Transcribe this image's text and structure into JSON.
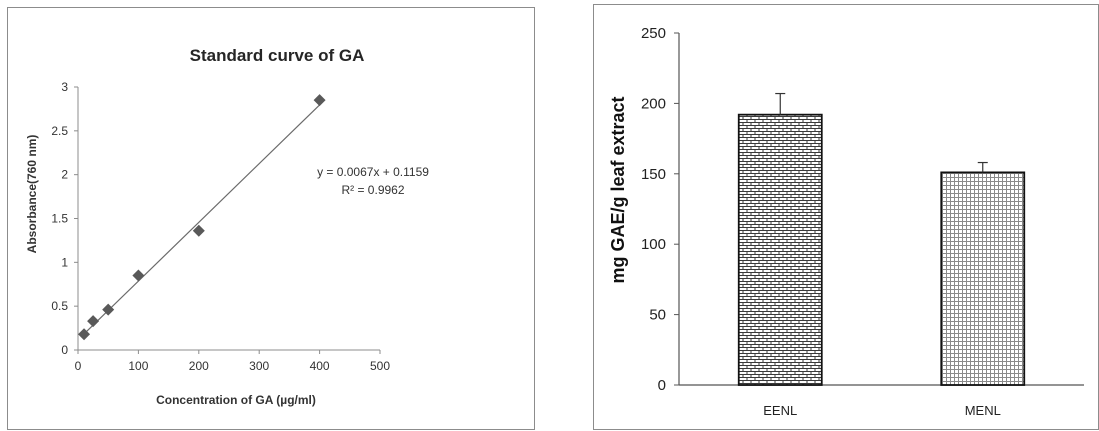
{
  "chart_data": [
    {
      "type": "scatter",
      "title": "Standard curve of GA",
      "xlabel": "Concentration of GA (µg/ml)",
      "ylabel": "Absorbance(760 nm)",
      "xlim": [
        0,
        500
      ],
      "ylim": [
        0,
        3
      ],
      "xticks": [
        "0",
        "100",
        "200",
        "300",
        "400",
        "500"
      ],
      "yticks": [
        "0",
        "0.5",
        "1",
        "1.5",
        "2",
        "2.5",
        "3"
      ],
      "points": [
        {
          "x": 10,
          "y": 0.18
        },
        {
          "x": 25,
          "y": 0.33
        },
        {
          "x": 50,
          "y": 0.46
        },
        {
          "x": 100,
          "y": 0.85
        },
        {
          "x": 200,
          "y": 1.36
        },
        {
          "x": 400,
          "y": 2.85
        }
      ],
      "trendline": {
        "slope": 0.0067,
        "intercept": 0.1159,
        "x_range": [
          10,
          400
        ]
      },
      "annotations": [
        "y = 0.0067x + 0.1159",
        "R² = 0.9962"
      ],
      "marker": "diamond",
      "marker_color": "#595959",
      "grid": false,
      "legend": "none"
    },
    {
      "type": "bar",
      "categories": [
        "EENL",
        "MENL"
      ],
      "values": [
        192,
        151
      ],
      "errors": [
        15,
        7
      ],
      "ylabel": "mg GAE/g leaf extract",
      "ylim": [
        0,
        250
      ],
      "yticks": [
        "0",
        "50",
        "100",
        "150",
        "200",
        "250"
      ],
      "patterns": [
        "brick",
        "grid"
      ],
      "grid": false,
      "legend": "none"
    }
  ]
}
